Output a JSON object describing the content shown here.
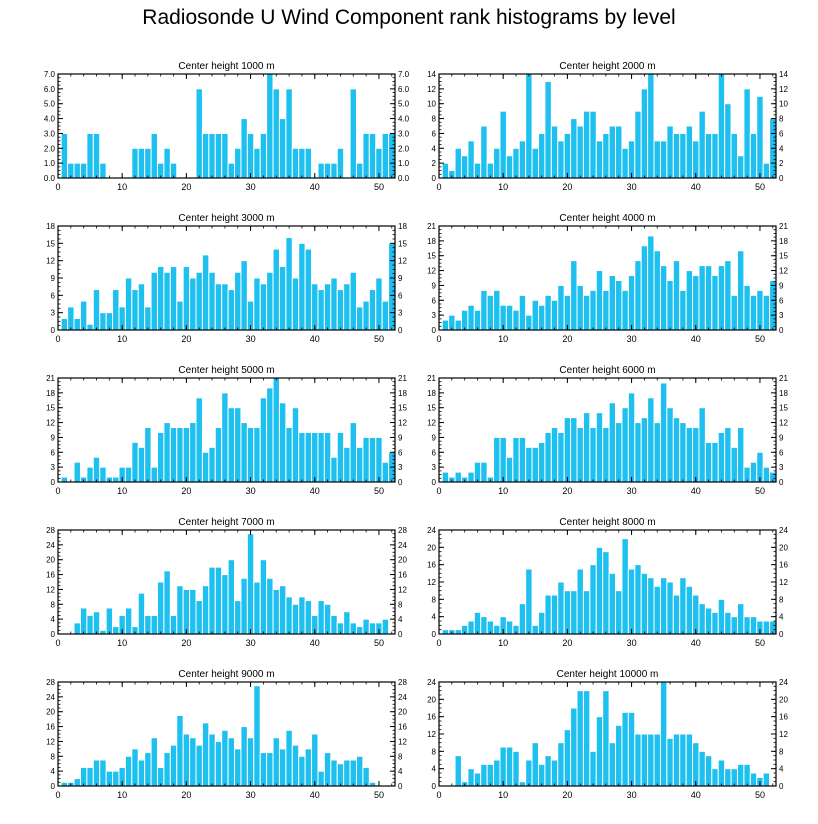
{
  "figure": {
    "title": "Radiosonde U Wind Component rank histograms by level",
    "bar_color": "#1ec0f0",
    "bar_edge_color": "#ffffff",
    "axis_color": "#000000"
  },
  "chart_data": [
    {
      "type": "bar",
      "title": "Center height 1000 m",
      "xlim": [
        0,
        52.5
      ],
      "xticks": [
        0,
        10,
        20,
        30,
        40,
        50
      ],
      "ylim": [
        0,
        7
      ],
      "yticks": [
        0,
        1,
        2,
        3,
        4,
        5,
        6,
        7
      ],
      "ytick_labels": [
        "0.0",
        "1.0",
        "2.0",
        "3.0",
        "4.0",
        "5.0",
        "6.0",
        "7.0"
      ],
      "values": [
        3,
        1,
        1,
        1,
        3,
        3,
        1,
        0,
        0,
        0,
        0,
        2,
        2,
        2,
        3,
        1,
        2,
        1,
        0,
        0,
        0,
        6,
        3,
        3,
        3,
        3,
        1,
        2,
        4,
        3,
        2,
        3,
        7,
        6,
        4,
        6,
        2,
        2,
        2,
        0,
        1,
        1,
        1,
        2,
        0,
        6,
        1,
        3,
        3,
        2,
        3,
        3
      ]
    },
    {
      "type": "bar",
      "title": "Center height 2000 m",
      "xlim": [
        0,
        52.5
      ],
      "xticks": [
        0,
        10,
        20,
        30,
        40,
        50
      ],
      "ylim": [
        0,
        14
      ],
      "yticks": [
        0,
        2,
        4,
        6,
        8,
        10,
        12,
        14
      ],
      "ytick_labels": [
        "0",
        "2",
        "4",
        "6",
        "8",
        "10",
        "12",
        "14"
      ],
      "values": [
        2,
        1,
        4,
        3,
        5,
        2,
        7,
        2,
        4,
        9,
        3,
        4,
        5,
        14,
        4,
        6,
        13,
        7,
        5,
        6,
        8,
        7,
        9,
        9,
        5,
        6,
        7,
        7,
        4,
        5,
        9,
        12,
        14,
        5,
        5,
        7,
        6,
        6,
        7,
        5,
        9,
        6,
        6,
        14,
        10,
        6,
        3,
        12,
        6,
        11,
        2,
        8
      ]
    },
    {
      "type": "bar",
      "title": "Center height 3000 m",
      "xlim": [
        0,
        52.5
      ],
      "xticks": [
        0,
        10,
        20,
        30,
        40,
        50
      ],
      "ylim": [
        0,
        18
      ],
      "yticks": [
        0,
        3,
        6,
        9,
        12,
        15,
        18
      ],
      "ytick_labels": [
        "0",
        "3",
        "6",
        "9",
        "12",
        "15",
        "18"
      ],
      "values": [
        2,
        4,
        2,
        5,
        1,
        7,
        3,
        3,
        7,
        4,
        9,
        7,
        8,
        4,
        10,
        11,
        10,
        11,
        5,
        11,
        9,
        10,
        13,
        10,
        8,
        8,
        7,
        10,
        12,
        5,
        9,
        8,
        10,
        14,
        11,
        16,
        9,
        15,
        14,
        8,
        7,
        8,
        9,
        7,
        8,
        10,
        4,
        5,
        7,
        9,
        5,
        15
      ]
    },
    {
      "type": "bar",
      "title": "Center height 4000 m",
      "xlim": [
        0,
        52.5
      ],
      "xticks": [
        0,
        10,
        20,
        30,
        40,
        50
      ],
      "ylim": [
        0,
        21
      ],
      "yticks": [
        0,
        3,
        6,
        9,
        12,
        15,
        18,
        21
      ],
      "ytick_labels": [
        "0",
        "3",
        "6",
        "9",
        "12",
        "15",
        "18",
        "21"
      ],
      "values": [
        2,
        3,
        2,
        4,
        5,
        4,
        8,
        7,
        8,
        5,
        5,
        4,
        7,
        3,
        6,
        5,
        7,
        6,
        9,
        7,
        14,
        9,
        7,
        8,
        12,
        8,
        11,
        10,
        8,
        11,
        14,
        17,
        19,
        16,
        13,
        10,
        14,
        8,
        12,
        11,
        13,
        13,
        11,
        13,
        14,
        7,
        16,
        9,
        7,
        8,
        7,
        10
      ]
    },
    {
      "type": "bar",
      "title": "Center height 5000 m",
      "xlim": [
        0,
        52.5
      ],
      "xticks": [
        0,
        10,
        20,
        30,
        40,
        50
      ],
      "ylim": [
        0,
        21
      ],
      "yticks": [
        0,
        3,
        6,
        9,
        12,
        15,
        18,
        21
      ],
      "ytick_labels": [
        "0",
        "3",
        "6",
        "9",
        "12",
        "15",
        "18",
        "21"
      ],
      "values": [
        1,
        0,
        4,
        1,
        3,
        5,
        3,
        1,
        1,
        3,
        3,
        8,
        7,
        11,
        3,
        10,
        12,
        11,
        11,
        11,
        12,
        17,
        6,
        7,
        11,
        18,
        15,
        15,
        12,
        11,
        11,
        17,
        19,
        21,
        16,
        11,
        15,
        10,
        10,
        10,
        10,
        10,
        5,
        10,
        7,
        12,
        7,
        9,
        9,
        9,
        4,
        6
      ]
    },
    {
      "type": "bar",
      "title": "Center height 6000 m",
      "xlim": [
        0,
        52.5
      ],
      "xticks": [
        0,
        10,
        20,
        30,
        40,
        50
      ],
      "ylim": [
        0,
        21
      ],
      "yticks": [
        0,
        3,
        6,
        9,
        12,
        15,
        18,
        21
      ],
      "ytick_labels": [
        "0",
        "3",
        "6",
        "9",
        "12",
        "15",
        "18",
        "21"
      ],
      "values": [
        2,
        1,
        2,
        1,
        2,
        4,
        4,
        1,
        9,
        9,
        5,
        9,
        9,
        7,
        7,
        8,
        10,
        11,
        10,
        13,
        13,
        11,
        14,
        11,
        14,
        11,
        16,
        12,
        15,
        18,
        12,
        13,
        17,
        12,
        20,
        15,
        13,
        12,
        11,
        11,
        15,
        8,
        8,
        10,
        11,
        7,
        11,
        3,
        4,
        6,
        3,
        2
      ]
    },
    {
      "type": "bar",
      "title": "Center height 7000 m",
      "xlim": [
        0,
        52.5
      ],
      "xticks": [
        0,
        10,
        20,
        30,
        40,
        50
      ],
      "ylim": [
        0,
        28
      ],
      "yticks": [
        0,
        4,
        8,
        12,
        16,
        20,
        24,
        28
      ],
      "ytick_labels": [
        "0",
        "4",
        "8",
        "12",
        "16",
        "20",
        "24",
        "28"
      ],
      "values": [
        0,
        0,
        3,
        7,
        5,
        6,
        1,
        7,
        2,
        5,
        7,
        2,
        11,
        5,
        5,
        14,
        17,
        5,
        13,
        12,
        12,
        9,
        13,
        18,
        18,
        16,
        20,
        9,
        15,
        27,
        14,
        20,
        15,
        12,
        13,
        10,
        8,
        10,
        9,
        5,
        9,
        8,
        5,
        3,
        6,
        3,
        2,
        4,
        3,
        3,
        4
      ]
    },
    {
      "type": "bar",
      "title": "Center height 8000 m",
      "xlim": [
        0,
        52.5
      ],
      "xticks": [
        0,
        10,
        20,
        30,
        40,
        50
      ],
      "ylim": [
        0,
        24
      ],
      "yticks": [
        0,
        4,
        8,
        12,
        16,
        20,
        24
      ],
      "ytick_labels": [
        "0",
        "4",
        "8",
        "12",
        "16",
        "20",
        "24"
      ],
      "values": [
        1,
        1,
        1,
        2,
        3,
        5,
        4,
        3,
        2,
        4,
        3,
        2,
        7,
        15,
        2,
        5,
        9,
        9,
        12,
        10,
        10,
        15,
        10,
        16,
        20,
        19,
        14,
        10,
        22,
        15,
        16,
        14,
        13,
        11,
        13,
        12,
        9,
        13,
        11,
        9,
        7,
        6,
        5,
        8,
        5,
        4,
        7,
        4,
        4,
        3,
        3,
        3
      ]
    },
    {
      "type": "bar",
      "title": "Center height 9000 m",
      "xlim": [
        0,
        52.5
      ],
      "xticks": [
        0,
        10,
        20,
        30,
        40,
        50
      ],
      "ylim": [
        0,
        28
      ],
      "yticks": [
        0,
        4,
        8,
        12,
        16,
        20,
        24,
        28
      ],
      "ytick_labels": [
        "0",
        "4",
        "8",
        "12",
        "16",
        "20",
        "24",
        "28"
      ],
      "values": [
        1,
        1,
        2,
        5,
        5,
        7,
        7,
        4,
        4,
        5,
        8,
        10,
        7,
        9,
        13,
        5,
        9,
        11,
        19,
        14,
        13,
        11,
        17,
        14,
        12,
        15,
        13,
        10,
        16,
        13,
        27,
        9,
        9,
        13,
        10,
        15,
        11,
        8,
        10,
        14,
        4,
        9,
        7,
        6,
        7,
        7,
        8,
        5,
        1
      ]
    },
    {
      "type": "bar",
      "title": "Center height 10000 m",
      "xlim": [
        0,
        52.5
      ],
      "xticks": [
        0,
        10,
        20,
        30,
        40,
        50
      ],
      "ylim": [
        0,
        24
      ],
      "yticks": [
        0,
        4,
        8,
        12,
        16,
        20,
        24
      ],
      "ytick_labels": [
        "0",
        "4",
        "8",
        "12",
        "16",
        "20",
        "24"
      ],
      "values": [
        0,
        0,
        7,
        1,
        4,
        3,
        5,
        5,
        6,
        9,
        9,
        8,
        1,
        6,
        10,
        5,
        7,
        6,
        10,
        13,
        18,
        22,
        22,
        8,
        16,
        22,
        10,
        14,
        17,
        17,
        12,
        12,
        12,
        12,
        24,
        11,
        12,
        12,
        12,
        10,
        8,
        7,
        4,
        6,
        4,
        4,
        5,
        5,
        3,
        2,
        3,
        0
      ]
    }
  ]
}
